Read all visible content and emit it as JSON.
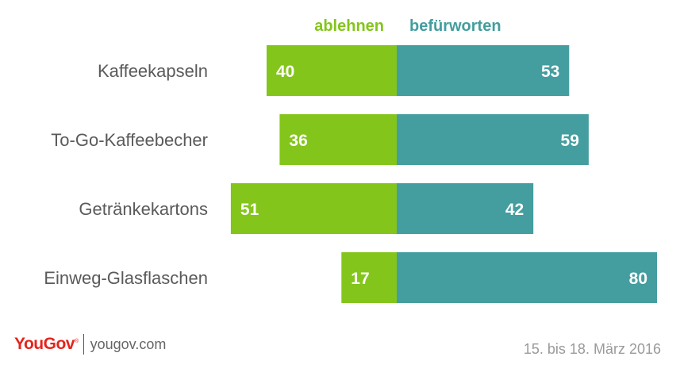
{
  "chart_data": {
    "type": "bar",
    "categories": [
      "Kaffeekapseln",
      "To-Go-Kaffeebecher",
      "Getränkekartons",
      "Einweg-Glasflaschen"
    ],
    "series": [
      {
        "name": "ablehnen",
        "values": [
          40,
          36,
          51,
          17
        ],
        "color": "#84c51c"
      },
      {
        "name": "befürworten",
        "values": [
          53,
          59,
          42,
          80
        ],
        "color": "#449d9f"
      }
    ],
    "legend_position": "top",
    "grid": false
  },
  "footer": {
    "logo": "YouGov",
    "site": "yougov.com",
    "date": "15. bis 18. März 2016"
  }
}
